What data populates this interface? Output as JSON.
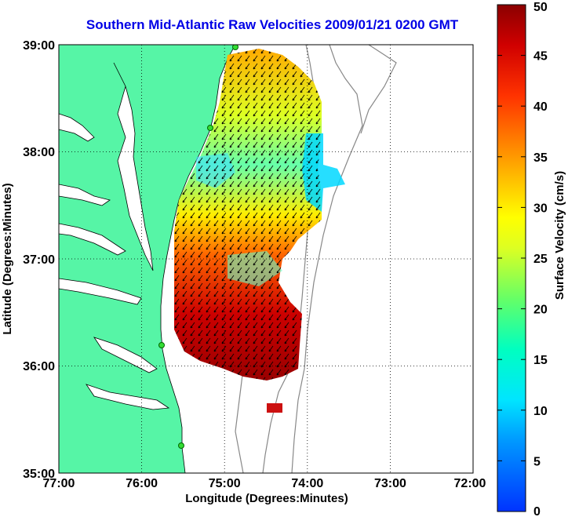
{
  "title": "Southern Mid-Atlantic Raw Velocities 2009/01/21 0200 GMT",
  "x_axis": {
    "label": "Longitude (Degrees:Minutes)",
    "ticks": [
      "77:00",
      "76:00",
      "75:00",
      "74:00",
      "73:00",
      "72:00"
    ]
  },
  "y_axis": {
    "label": "Latitude (Degrees:Minutes)",
    "ticks": [
      "39:00",
      "38:00",
      "37:00",
      "36:00",
      "35:00"
    ]
  },
  "colorbar": {
    "label": "Surface Velocity (cm/s)",
    "ticks": [
      "0",
      "5",
      "10",
      "15",
      "20",
      "25",
      "30",
      "35",
      "40",
      "45",
      "50"
    ],
    "colors": [
      "#0033ff",
      "#00c8ff",
      "#00ffd0",
      "#aaff33",
      "#ffff00",
      "#ff9900",
      "#ff2200",
      "#8b0000"
    ]
  },
  "colors": {
    "land": "#56f5a6",
    "title": "#0000e6",
    "grid": "#000000",
    "bathymetry": "#888888"
  }
}
